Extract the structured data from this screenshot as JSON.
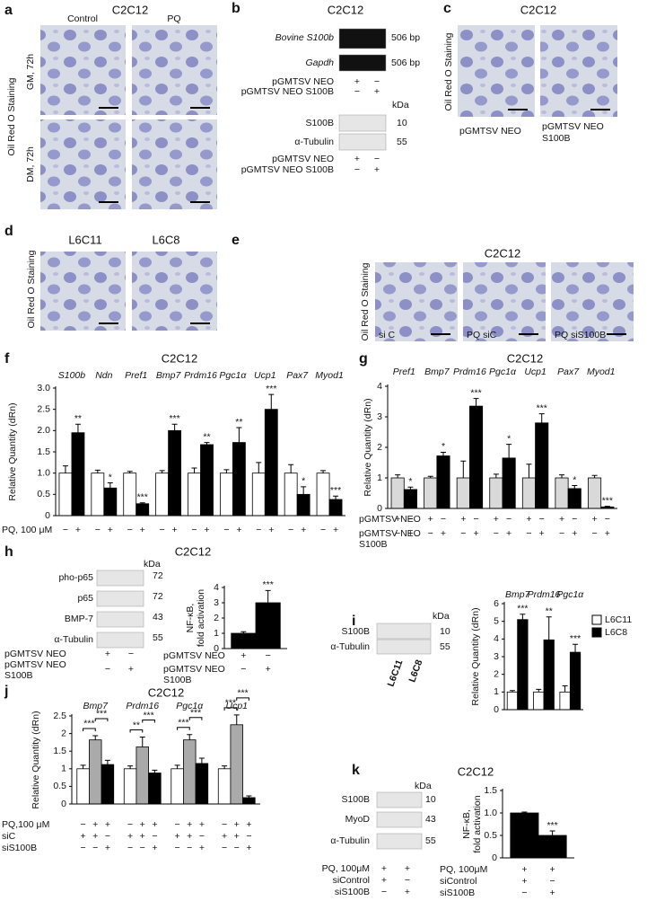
{
  "a": {
    "letter": "a",
    "title": "C2C12",
    "columns": [
      "Control",
      "PQ"
    ],
    "rows": [
      "GM, 72h",
      "DM, 72h"
    ],
    "stain": "Oil Red O Staining"
  },
  "b": {
    "letter": "b",
    "title": "C2C12",
    "gel_lanes": [
      "Bovine S100b",
      "Gapdh"
    ],
    "gel_size": "506 bp",
    "unit": "kDa",
    "blot_rows": [
      {
        "label": "S100B",
        "kda": 10
      },
      {
        "label": "α-Tubulin",
        "kda": 55
      }
    ],
    "conditions": [
      {
        "label": "pGMTSV NEO",
        "marks": [
          "+",
          "−"
        ]
      },
      {
        "label": "pGMTSV NEO S100B",
        "marks": [
          "−",
          "+"
        ]
      }
    ]
  },
  "c": {
    "letter": "c",
    "title": "C2C12",
    "stain": "Oil Red O Staining",
    "captions": [
      [
        "pGMTSV NEO"
      ],
      [
        "pGMTSV NEO",
        "S100B"
      ]
    ]
  },
  "d": {
    "letter": "d",
    "stain": "Oil Red O Staining",
    "columns": [
      "L6C11",
      "L6C8"
    ]
  },
  "e": {
    "letter": "e",
    "title": "C2C12",
    "stain": "Oil Red O Staining",
    "captions": [
      "si C",
      "PQ siC",
      "PQ siS100B"
    ]
  },
  "h_blot": {
    "unit": "kDa",
    "rows": [
      {
        "label": "pho-p65",
        "kda": 72
      },
      {
        "label": "p65",
        "kda": 72
      },
      {
        "label": "BMP-7",
        "kda": 43
      },
      {
        "label": "α-Tubulin",
        "kda": 55
      }
    ],
    "conditions": [
      {
        "label": [
          "pGMTSV NEO"
        ],
        "marks": [
          "+",
          "−"
        ]
      },
      {
        "label": [
          "pGMTSV NEO",
          "S100B"
        ],
        "marks": [
          "−",
          "+"
        ]
      }
    ]
  },
  "i_blot": {
    "unit": "kDa",
    "rows": [
      {
        "label": "S100B",
        "kda": 10
      },
      {
        "label": "α-Tubulin",
        "kda": 55
      }
    ],
    "lanes": [
      "L6C11",
      "L6C8"
    ]
  },
  "k_blot": {
    "unit": "kDa",
    "rows": [
      {
        "label": "S100B",
        "kda": 10
      },
      {
        "label": "MyoD",
        "kda": 43
      },
      {
        "label": "α-Tubulin",
        "kda": 55
      }
    ],
    "conditions": [
      {
        "label": [
          "PQ, 100μM"
        ],
        "marks": [
          "+",
          "+"
        ]
      },
      {
        "label": [
          "siControl"
        ],
        "marks": [
          "+",
          "−"
        ]
      },
      {
        "label": [
          "siS100B"
        ],
        "marks": [
          "−",
          "+"
        ]
      }
    ]
  },
  "chart_data": [
    {
      "type": "bar",
      "letter": "f",
      "title": "C2C12",
      "ylabel": "Relative Quantity (dRn)",
      "categories": [
        "S100b",
        "Ndn",
        "Pref1",
        "Bmp7",
        "Prdm16",
        "Pgc1α",
        "Ucp1",
        "Pax7",
        "Myod1"
      ],
      "series": [
        {
          "color": "#ffffff",
          "values": [
            1,
            1,
            1,
            1,
            1,
            1,
            1,
            1,
            1
          ],
          "errors": [
            0.17,
            0.07,
            0.04,
            0.06,
            0.12,
            0.08,
            0.25,
            0.2,
            0.06
          ]
        },
        {
          "color": "#000000",
          "values": [
            1.95,
            0.65,
            0.28,
            2.0,
            1.67,
            1.72,
            2.5,
            0.5,
            0.38
          ],
          "errors": [
            0.2,
            0.12,
            0.02,
            0.15,
            0.05,
            0.35,
            0.35,
            0.18,
            0.08
          ],
          "significance": [
            "**",
            "*",
            "***",
            "***",
            "**",
            "**",
            "***",
            "*",
            "***"
          ]
        }
      ],
      "ylim": [
        0,
        3
      ],
      "yticks": [
        0,
        0.5,
        {
          "value": 1,
          "label": "1.0"
        },
        1.5,
        {
          "value": 2,
          "label": "2.0"
        },
        2.5,
        {
          "value": 3,
          "label": "3.0"
        }
      ],
      "conditions": [
        {
          "label": [
            "PQ, 100 μM"
          ],
          "marks": [
            "−",
            "+"
          ]
        }
      ]
    },
    {
      "type": "bar",
      "letter": "g",
      "title": "C2C12",
      "ylabel": "Relative Quantity (dRn)",
      "categories": [
        "Pref1",
        "Bmp7",
        "Prdm16",
        "Pgc1α",
        "Ucp1",
        "Pax7",
        "Myod1"
      ],
      "series": [
        {
          "color": "#d9d9d9",
          "values": [
            1,
            1,
            1,
            1,
            1,
            1,
            1
          ],
          "errors": [
            0.1,
            0.05,
            0.55,
            0.12,
            0.45,
            0.1,
            0.08
          ]
        },
        {
          "color": "#000000",
          "values": [
            0.62,
            1.72,
            3.35,
            1.65,
            2.8,
            0.65,
            0.05
          ],
          "errors": [
            0.08,
            0.12,
            0.25,
            0.45,
            0.3,
            0.1,
            0.02
          ],
          "significance": [
            "*",
            "*",
            "***",
            "*",
            "***",
            "*",
            "***"
          ]
        }
      ],
      "ylim": [
        0,
        4
      ],
      "yticks": [
        0,
        1,
        2,
        3,
        4
      ],
      "conditions": [
        {
          "label": [
            "pGMTSV NEO"
          ],
          "marks": [
            "+",
            "−"
          ]
        },
        {
          "label": [
            "pGMTSV NEO",
            "S100B"
          ],
          "marks": [
            "−",
            "+"
          ]
        }
      ]
    },
    {
      "type": "bar",
      "letter": "h",
      "title": "C2C12",
      "ylabel": [
        "NF-κB,",
        "fold activation"
      ],
      "series": [
        {
          "color": "#000000",
          "values": [
            1.0
          ],
          "errors": [
            0.1
          ]
        },
        {
          "color": "#000000",
          "values": [
            3.0
          ],
          "errors": [
            0.8
          ],
          "significance": [
            "***"
          ]
        }
      ],
      "ylim": [
        0,
        4
      ],
      "yticks": [
        0,
        1,
        2,
        3,
        4
      ],
      "conditions": [
        {
          "label": [
            "pGMTSV NEO"
          ],
          "marks": [
            "+",
            "−"
          ]
        },
        {
          "label": [
            "pGMTSV NEO",
            "S100B"
          ],
          "marks": [
            "−",
            "+"
          ]
        }
      ]
    },
    {
      "type": "bar",
      "letter": "i",
      "ylabel": "Relative Quantity (dRn)",
      "categories": [
        "Bmp7",
        "Prdm16",
        "Pgc1α"
      ],
      "series": [
        {
          "name": "L6C11",
          "color": "#ffffff",
          "values": [
            1,
            1,
            1
          ],
          "errors": [
            0.08,
            0.15,
            0.35
          ]
        },
        {
          "name": "L6C8",
          "color": "#000000",
          "values": [
            5.1,
            3.95,
            3.25
          ],
          "errors": [
            0.3,
            1.3,
            0.45
          ],
          "significance": [
            "***",
            "**",
            "***"
          ]
        }
      ],
      "ylim": [
        0,
        6
      ],
      "yticks": [
        0,
        1,
        2,
        3,
        4,
        5,
        6
      ],
      "legend": "upper right"
    },
    {
      "type": "bar",
      "letter": "j",
      "title": "C2C12",
      "ylabel": "Relative Quantity (dRn)",
      "categories": [
        "Bmp7",
        "Prdm16",
        "Pgc1α",
        "Ucp1"
      ],
      "series": [
        {
          "color": "#ffffff",
          "values": [
            1,
            1,
            1,
            1
          ],
          "errors": [
            0.1,
            0.08,
            0.1,
            0.08
          ]
        },
        {
          "color": "#aaaaaa",
          "values": [
            1.82,
            1.62,
            1.82,
            2.25
          ],
          "errors": [
            0.12,
            0.28,
            0.15,
            0.28
          ]
        },
        {
          "color": "#000000",
          "values": [
            1.12,
            0.88,
            1.15,
            0.18
          ],
          "errors": [
            0.12,
            0.08,
            0.15,
            0.05
          ]
        }
      ],
      "comparisons": [
        [
          "***",
          "***"
        ],
        [
          "**",
          "***"
        ],
        [
          "***",
          "***"
        ],
        [
          "***",
          "***"
        ]
      ],
      "ylim": [
        0,
        2.5
      ],
      "yticks": [
        0,
        0.5,
        1,
        1.5,
        2,
        2.5
      ],
      "conditions": [
        {
          "label": [
            "PQ,100 μM"
          ],
          "marks": [
            "−",
            "+",
            "+"
          ]
        },
        {
          "label": [
            "siC"
          ],
          "marks": [
            "+",
            "+",
            "−"
          ]
        },
        {
          "label": [
            "siS100B"
          ],
          "marks": [
            "−",
            "−",
            "+"
          ]
        }
      ]
    },
    {
      "type": "bar",
      "letter": "k",
      "title": "C2C12",
      "ylabel": [
        "NF-κB,",
        "fold activation"
      ],
      "series": [
        {
          "color": "#000000",
          "values": [
            1.0
          ],
          "errors": [
            0.02
          ]
        },
        {
          "color": "#000000",
          "values": [
            0.5
          ],
          "errors": [
            0.1
          ],
          "significance": [
            "***"
          ]
        }
      ],
      "ylim": [
        0,
        1.5
      ],
      "yticks": [
        0,
        0.5,
        {
          "value": 1,
          "label": "1.0"
        },
        1.5
      ],
      "conditions": [
        {
          "label": [
            "PQ, 100μM"
          ],
          "marks": [
            "+",
            "+"
          ]
        },
        {
          "label": [
            "siControl"
          ],
          "marks": [
            "+",
            "−"
          ]
        },
        {
          "label": [
            "siS100B"
          ],
          "marks": [
            "−",
            "+"
          ]
        }
      ]
    }
  ]
}
